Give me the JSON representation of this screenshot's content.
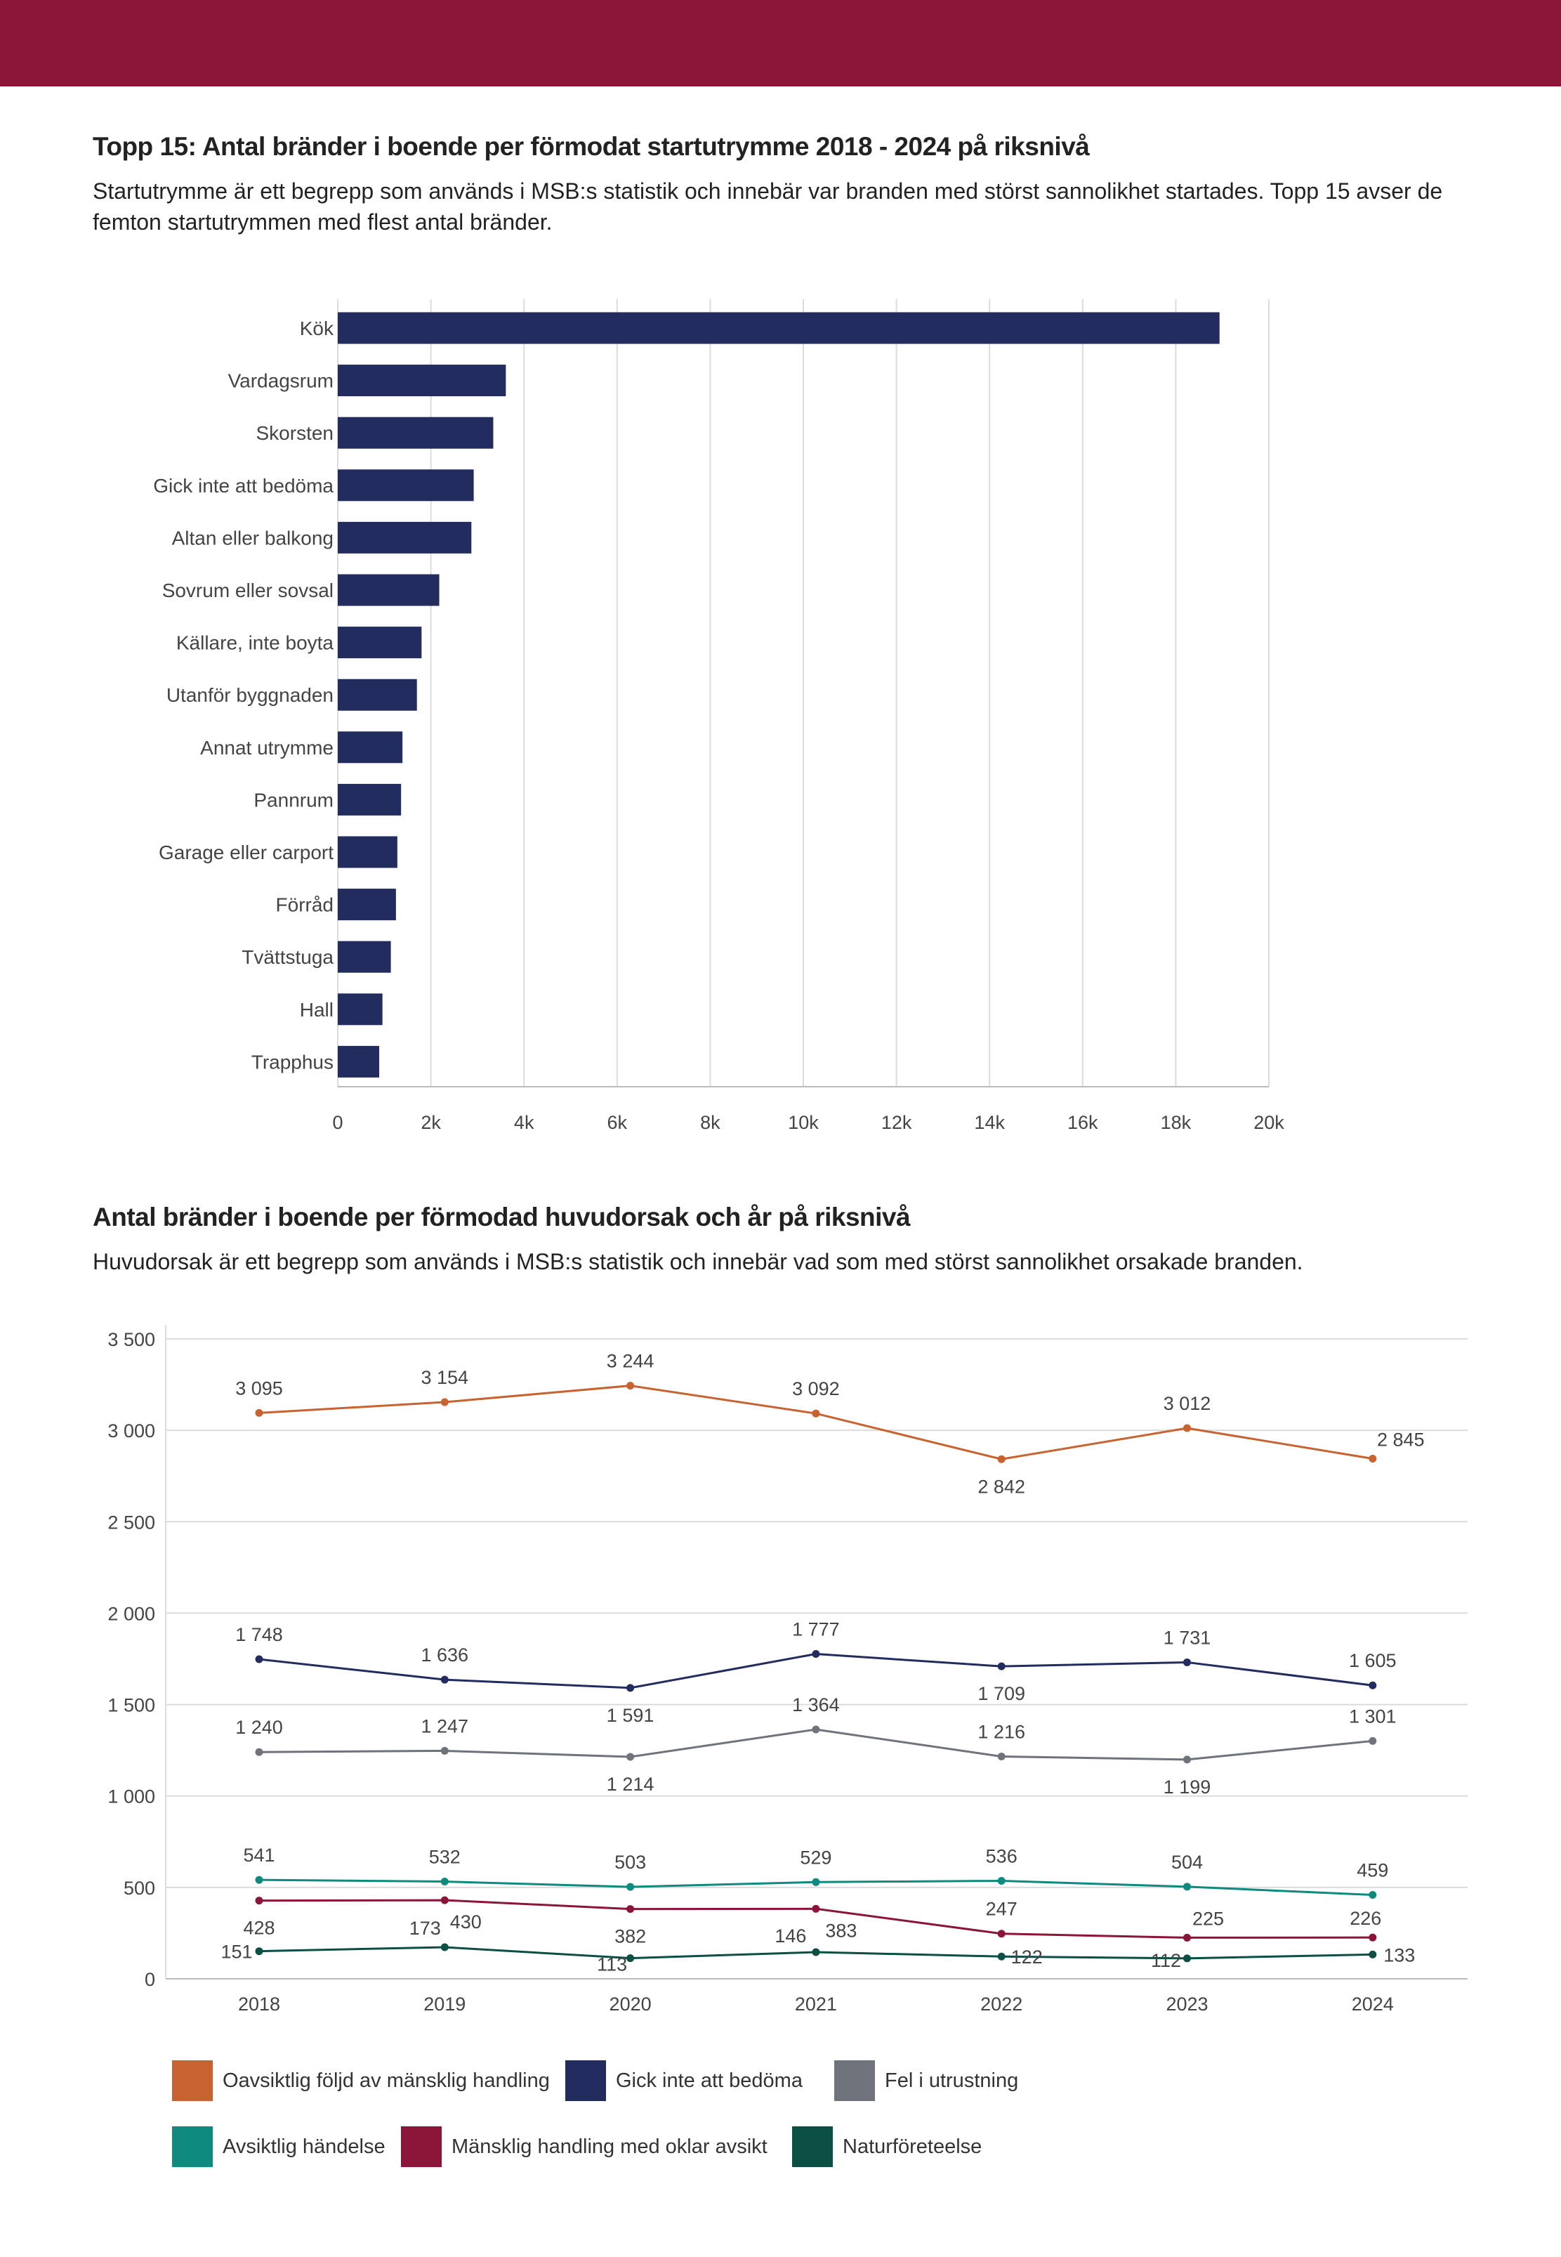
{
  "header": {
    "color": "#8B1538"
  },
  "chart_data": [
    {
      "type": "bar",
      "orientation": "horizontal",
      "title": "Topp 15: Antal bränder i boende per förmodat startutrymme 2018 - 2024 på riksnivå",
      "subtitle": "Startutrymme är ett begrepp som används i MSB:s statistik och innebär var branden med störst sannolikhet startades. Topp 15 avser de femton startutrymmen med flest antal bränder.",
      "categories": [
        "Kök",
        "Vardagsrum",
        "Skorsten",
        "Gick inte att bedöma",
        "Altan eller balkong",
        "Sovrum eller sovsal",
        "Källare, inte boyta",
        "Utanför byggnaden",
        "Annat utrymme",
        "Pannrum",
        "Garage eller carport",
        "Förråd",
        "Tvättstuga",
        "Hall",
        "Trapphus"
      ],
      "values": [
        18940,
        3610,
        3340,
        2920,
        2870,
        2180,
        1800,
        1700,
        1390,
        1360,
        1280,
        1250,
        1140,
        960,
        890
      ],
      "xlim": [
        0,
        20000
      ],
      "xticks": [
        "0",
        "2k",
        "4k",
        "6k",
        "8k",
        "10k",
        "12k",
        "14k",
        "16k",
        "18k",
        "20k"
      ],
      "grid": true,
      "color": "#232C5E"
    },
    {
      "type": "line",
      "title": "Antal bränder i boende per förmodad huvudorsak och år på riksnivå",
      "subtitle": "Huvudorsak är ett begrepp som används i MSB:s statistik och innebär vad som med störst sannolikhet orsakade branden.",
      "x": [
        "2018",
        "2019",
        "2020",
        "2021",
        "2022",
        "2023",
        "2024"
      ],
      "ylim": [
        0,
        3500
      ],
      "yticks": [
        "0",
        "500",
        "1 000",
        "1 500",
        "2 000",
        "2 500",
        "3 000",
        "3 500"
      ],
      "grid": true,
      "legend": "bottom",
      "series": [
        {
          "name": "Oavsiktlig följd av mänsklig handling",
          "color": "#C8622F",
          "values": [
            3095,
            3154,
            3244,
            3092,
            2842,
            3012,
            2845
          ],
          "labels": [
            "3 095",
            "3 154",
            "3 244",
            "3 092",
            "2 842",
            "3 012",
            "2 845"
          ]
        },
        {
          "name": "Gick inte att bedöma",
          "color": "#232C5E",
          "values": [
            1748,
            1636,
            1591,
            1777,
            1709,
            1731,
            1605
          ],
          "labels": [
            "1 748",
            "1 636",
            "1 591",
            "1 777",
            "1 709",
            "1 731",
            "1 605"
          ]
        },
        {
          "name": "Fel i utrustning",
          "color": "#6E737C",
          "values": [
            1240,
            1247,
            1214,
            1364,
            1216,
            1199,
            1301
          ],
          "labels": [
            "1 240",
            "1 247",
            "1 214",
            "1 364",
            "1 216",
            "1 199",
            "1 301"
          ]
        },
        {
          "name": "Avsiktlig händelse",
          "color": "#0E8A7E",
          "values": [
            541,
            532,
            503,
            529,
            536,
            504,
            459
          ],
          "labels": [
            "541",
            "532",
            "503",
            "529",
            "536",
            "504",
            "459"
          ]
        },
        {
          "name": "Mänsklig handling med oklar avsikt",
          "color": "#8B1538",
          "values": [
            428,
            430,
            382,
            383,
            247,
            225,
            226
          ],
          "labels": [
            "428",
            "430",
            "382",
            "383",
            "247",
            "225",
            "226"
          ]
        },
        {
          "name": "Naturföreteelse",
          "color": "#0B4F45",
          "values": [
            151,
            173,
            113,
            146,
            122,
            112,
            133
          ],
          "labels": [
            "151",
            "173",
            "113",
            "146",
            "122",
            "112",
            "133"
          ]
        }
      ]
    }
  ]
}
